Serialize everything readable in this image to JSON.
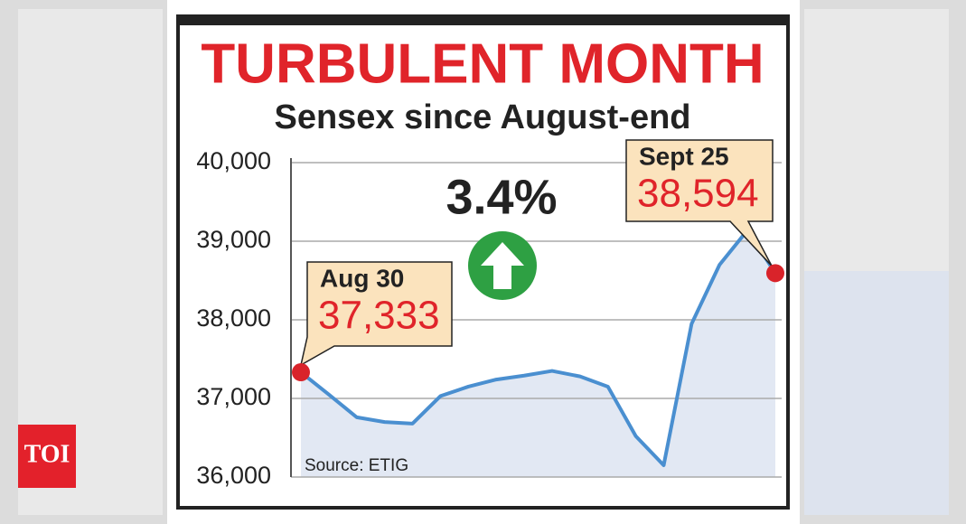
{
  "logo": "TOI",
  "chart_data": {
    "type": "line",
    "title": "TURBULENT MONTH",
    "subtitle": "Sensex since August-end",
    "categories": [
      "Aug 30",
      null,
      null,
      null,
      null,
      null,
      null,
      null,
      null,
      null,
      null,
      null,
      null,
      null,
      null,
      null,
      null,
      "Sept 25"
    ],
    "values": [
      37333,
      37050,
      36760,
      36700,
      36680,
      37030,
      37150,
      37240,
      37290,
      37350,
      37280,
      37150,
      36520,
      36150,
      37950,
      38700,
      39140,
      38594
    ],
    "value_labels": [
      "37,333",
      null,
      null,
      null,
      null,
      null,
      null,
      null,
      null,
      null,
      null,
      null,
      null,
      null,
      null,
      null,
      null,
      "38,594"
    ],
    "color": "#4a8fd0",
    "ylim": [
      36000,
      40000
    ],
    "yticks": [
      {
        "value": 36000,
        "label": "36,000"
      },
      {
        "value": 37000,
        "label": "37,000"
      },
      {
        "value": 38000,
        "label": "38,000"
      },
      {
        "value": 39000,
        "label": "39,000"
      },
      {
        "value": 40000,
        "label": "40,000"
      }
    ],
    "grid": true,
    "change": "3.4%",
    "source": "Source: ETIG"
  }
}
